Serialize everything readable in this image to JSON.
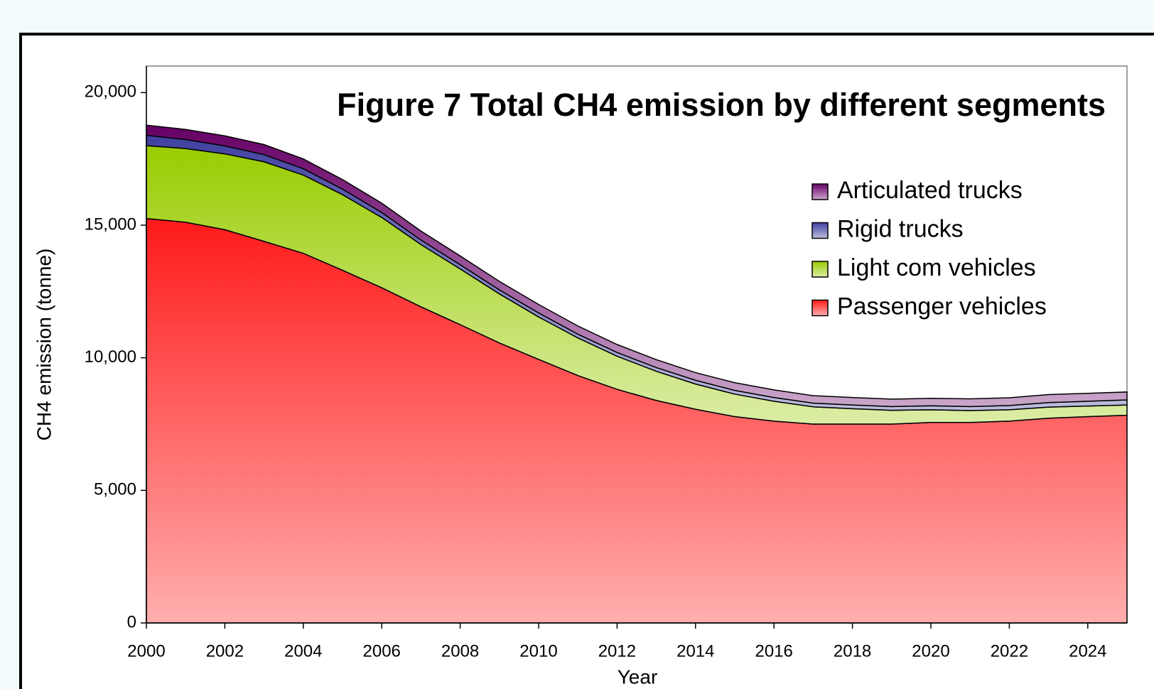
{
  "chart_data": {
    "type": "stacked_area",
    "title": "Figure 7 Total CH4 emission by different segments",
    "x_label": "Year",
    "y_label": "CH4 emission (tonne)",
    "x": [
      2000,
      2001,
      2002,
      2003,
      2004,
      2005,
      2006,
      2007,
      2008,
      2009,
      2010,
      2011,
      2012,
      2013,
      2014,
      2015,
      2016,
      2017,
      2018,
      2019,
      2020,
      2021,
      2022,
      2023,
      2024,
      2025
    ],
    "series": [
      {
        "name": "Passenger vehicles",
        "color": "#ff1a1a",
        "values": [
          15250,
          15110,
          14830,
          14390,
          13940,
          13300,
          12640,
          11920,
          11250,
          10560,
          9940,
          9330,
          8810,
          8390,
          8060,
          7780,
          7610,
          7500,
          7500,
          7500,
          7560,
          7560,
          7610,
          7720,
          7780,
          7830
        ]
      },
      {
        "name": "Light com vehicles",
        "color": "#99cc00",
        "values": [
          2750,
          2780,
          2860,
          3000,
          2950,
          2850,
          2650,
          2350,
          2100,
          1850,
          1600,
          1420,
          1250,
          1100,
          950,
          850,
          750,
          650,
          580,
          520,
          480,
          450,
          430,
          420,
          400,
          390
        ]
      },
      {
        "name": "Rigid trucks",
        "color": "#4040a0",
        "values": [
          390,
          340,
          300,
          270,
          240,
          210,
          190,
          170,
          160,
          150,
          150,
          140,
          140,
          140,
          140,
          140,
          140,
          140,
          140,
          140,
          150,
          150,
          160,
          170,
          180,
          190
        ]
      },
      {
        "name": "Articulated trucks",
        "color": "#660066",
        "values": [
          380,
          380,
          380,
          380,
          370,
          360,
          350,
          340,
          330,
          320,
          320,
          310,
          300,
          300,
          290,
          290,
          290,
          280,
          280,
          280,
          280,
          290,
          290,
          300,
          300,
          300
        ]
      }
    ],
    "xlim": [
      2000,
      2025
    ],
    "xticks": [
      2000,
      2002,
      2004,
      2006,
      2008,
      2010,
      2012,
      2014,
      2016,
      2018,
      2020,
      2022,
      2024
    ],
    "ylim": [
      0,
      21000
    ],
    "yticks": [
      {
        "value": 0,
        "label": "0"
      },
      {
        "value": 5000,
        "label": "5,000"
      },
      {
        "value": 10000,
        "label": "10,000"
      },
      {
        "value": 15000,
        "label": "15,000"
      },
      {
        "value": 20000,
        "label": "20,000"
      }
    ],
    "grid": false,
    "legend_position": "upper right"
  }
}
